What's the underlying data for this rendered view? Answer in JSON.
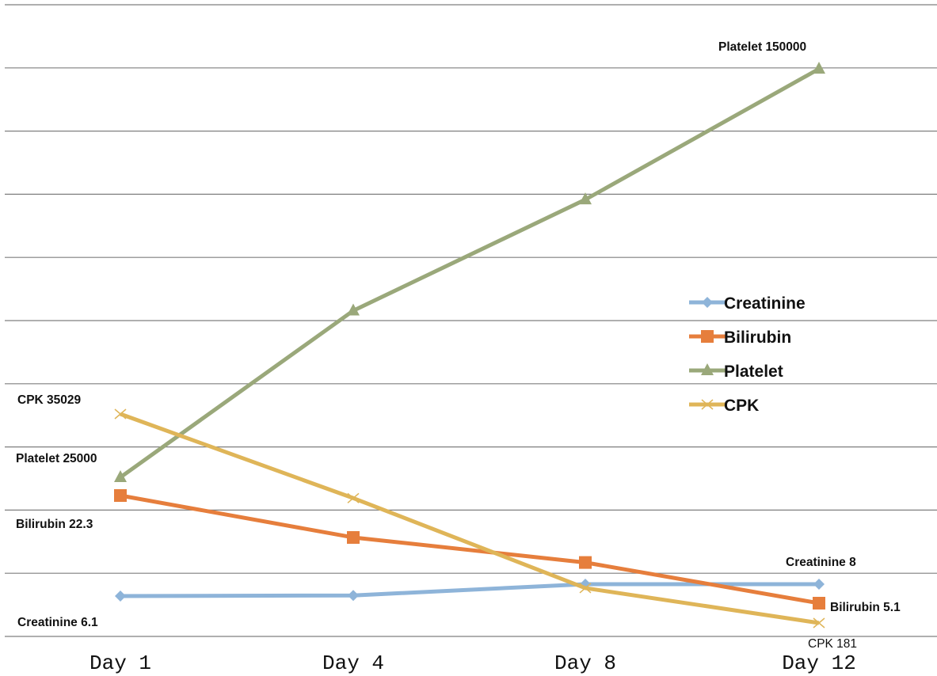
{
  "chart_data": {
    "type": "line",
    "categories": [
      "Day 1",
      "Day 4",
      "Day 8",
      "Day 12"
    ],
    "grid": true,
    "legend_position": "right",
    "series": [
      {
        "name": "Creatinine",
        "color": "#8eb4d9",
        "marker": "diamond",
        "values": [
          6.1,
          6.2,
          8,
          8
        ]
      },
      {
        "name": "Bilirubin",
        "color": "#e67e3c",
        "marker": "square",
        "values": [
          22.3,
          15.6,
          11.6,
          5.1
        ]
      },
      {
        "name": "Platelet",
        "color": "#9aa87a",
        "marker": "triangle",
        "values": [
          25000,
          76000,
          110000,
          150000
        ]
      },
      {
        "name": "CPK",
        "color": "#dfb558",
        "marker": "x",
        "values": [
          35029,
          21000,
          6000,
          181
        ]
      }
    ],
    "annotations": [
      {
        "id": "cpk-day1",
        "text": "CPK  35029"
      },
      {
        "id": "platelet-day1",
        "text": "Platelet 25000"
      },
      {
        "id": "bilirubin-day1",
        "text": "Bilirubin 22.3"
      },
      {
        "id": "creatinine-day1",
        "text": "Creatinine 6.1"
      },
      {
        "id": "platelet-day12",
        "text": "Platelet 150000"
      },
      {
        "id": "creatinine-day12",
        "text": "Creatinine 8"
      },
      {
        "id": "bilirubin-day12",
        "text": "Bilirubin 5.1"
      },
      {
        "id": "cpk-day12",
        "text": "CPK 181"
      }
    ]
  }
}
